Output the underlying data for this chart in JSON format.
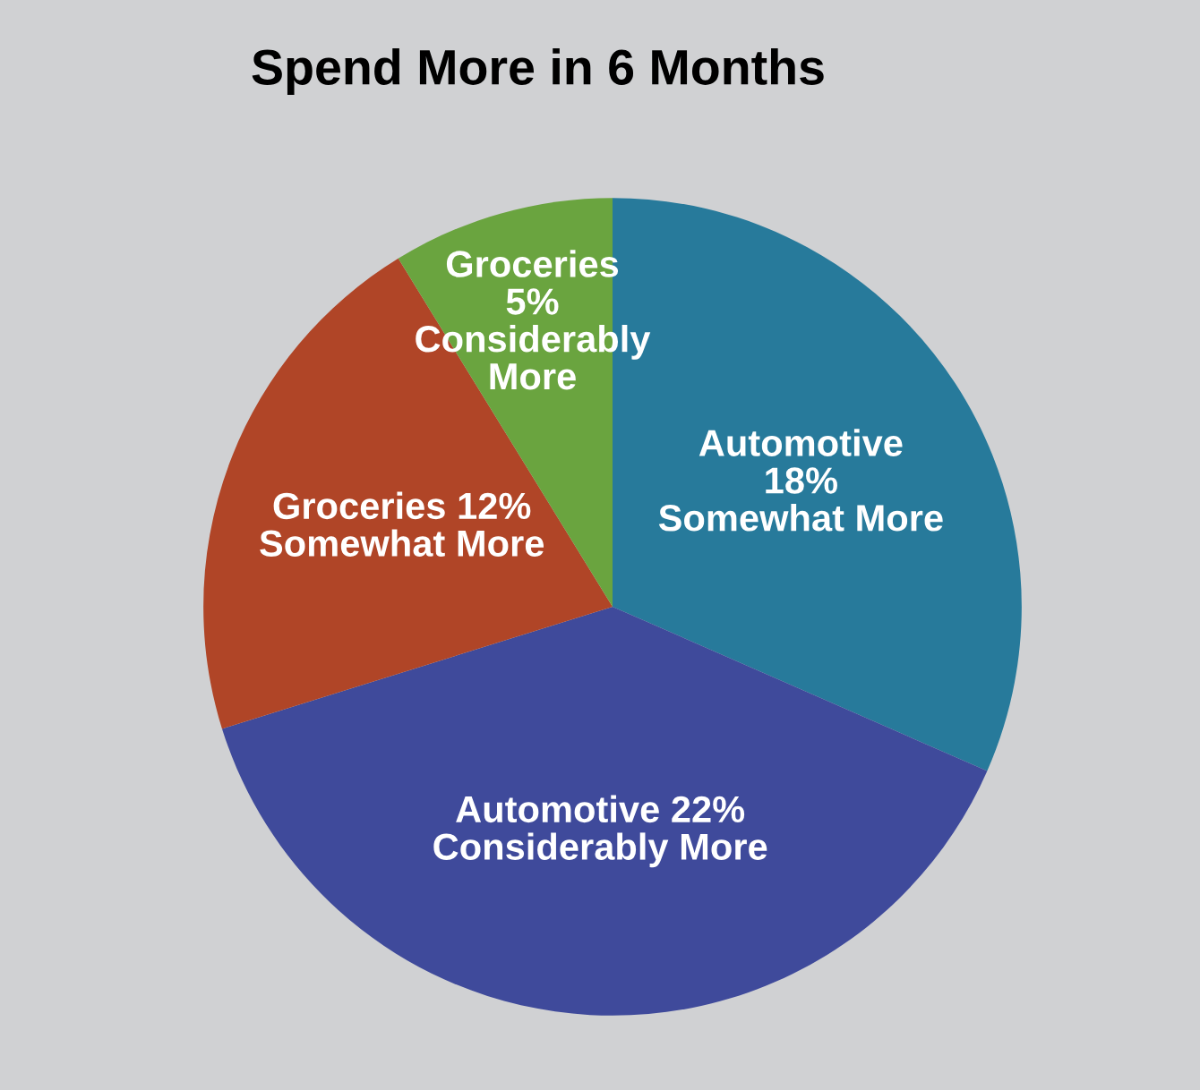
{
  "chart_data": {
    "type": "pie",
    "title": "Spend More in 6 Months",
    "categories": [
      "Automotive\n18%\nSomewhat More",
      "Automotive 22%\nConsiderably More",
      "Groceries 12%\nSomewhat More",
      "Groceries\n5%\nConsiderably\nMore"
    ],
    "values": [
      18,
      22,
      12,
      5
    ],
    "colors": [
      "#277a9b",
      "#3f4a9b",
      "#b04527",
      "#6aa43f"
    ]
  }
}
